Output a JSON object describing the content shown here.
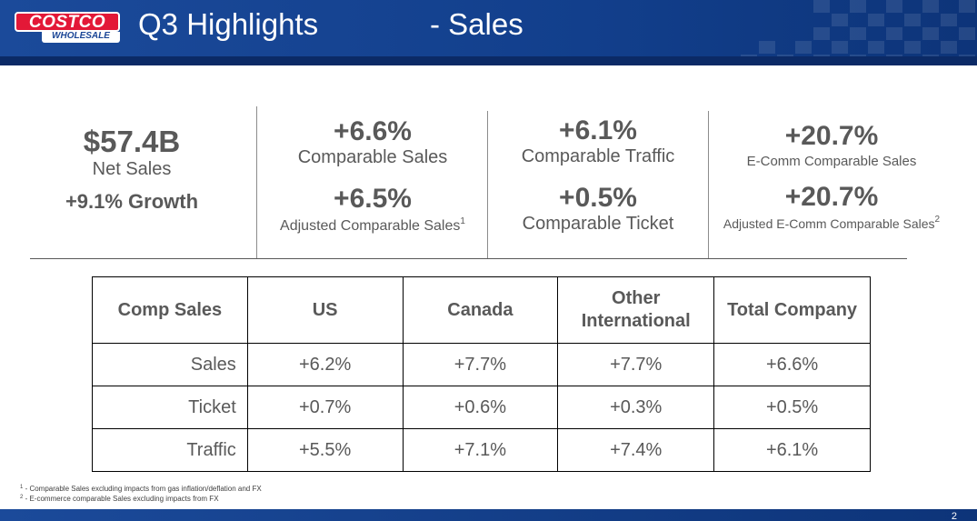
{
  "logo": {
    "top_text": "COSTCO",
    "bottom_text": "WHOLESALE"
  },
  "header": {
    "title": "Q3 Highlights",
    "subtitle": "-  Sales"
  },
  "kpis": {
    "net_sales": {
      "value": "$57.4B",
      "label": "Net Sales",
      "growth": "+9.1% Growth"
    },
    "comp_sales": {
      "value": "+6.6%",
      "label": "Comparable Sales"
    },
    "adj_comp_sales": {
      "value": "+6.5%",
      "label": "Adjusted Comparable Sales",
      "footnote_ref": "1"
    },
    "comp_traffic": {
      "value": "+6.1%",
      "label": "Comparable Traffic"
    },
    "comp_ticket": {
      "value": "+0.5%",
      "label": "Comparable Ticket"
    },
    "ecomm_comp": {
      "value": "+20.7%",
      "label": "E-Comm Comparable Sales"
    },
    "adj_ecomm_comp": {
      "value": "+20.7%",
      "label": "Adjusted E-Comm Comparable Sales",
      "footnote_ref": "2"
    }
  },
  "table": {
    "headers": [
      "Comp Sales",
      "US",
      "Canada",
      "Other International",
      "Total Company"
    ],
    "rows": [
      {
        "label": "Sales",
        "values": [
          "+6.2%",
          "+7.7%",
          "+7.7%",
          "+6.6%"
        ]
      },
      {
        "label": "Ticket",
        "values": [
          "+0.7%",
          "+0.6%",
          "+0.3%",
          "+0.5%"
        ]
      },
      {
        "label": "Traffic",
        "values": [
          "+5.5%",
          "+7.1%",
          "+7.4%",
          "+6.1%"
        ]
      }
    ]
  },
  "footnotes": [
    {
      "ref": "1",
      "text": " - Comparable Sales excluding impacts from gas inflation/deflation and FX"
    },
    {
      "ref": "2",
      "text": " - E-commerce comparable Sales excluding impacts from FX"
    }
  ],
  "page_number": "2",
  "colors": {
    "header_blue": "#1b4a9a",
    "logo_red": "#e31837",
    "text_gray": "#595959"
  }
}
